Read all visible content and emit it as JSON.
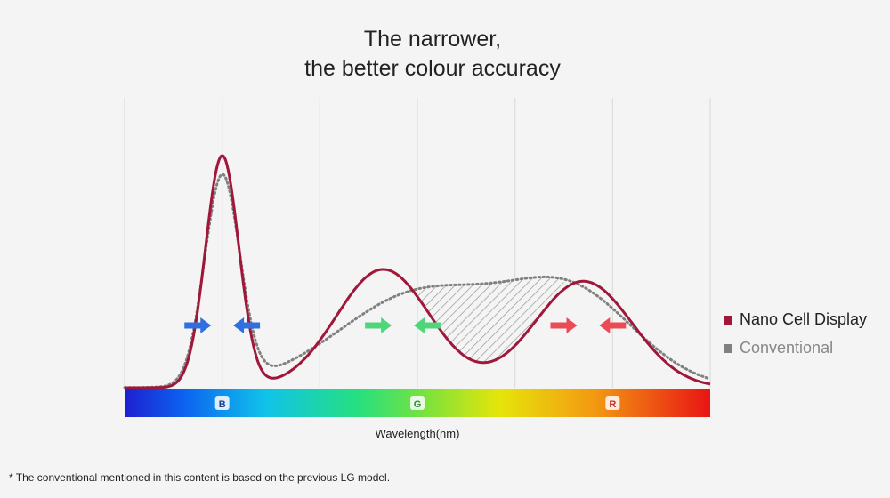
{
  "title_line1": "The narrower,",
  "title_line2": "the better colour accuracy",
  "footnote": "* The conventional mentioned in this content is based on the previous LG model.",
  "chart_data": {
    "type": "line",
    "title": "The narrower, the better colour accuracy",
    "xlabel": "Wavelength(nm)",
    "ylabel": "",
    "spectrum_labels": [
      "B",
      "G",
      "R"
    ],
    "series": [
      {
        "name": "Nano Cell Display",
        "color": "#a0173a",
        "style": "solid",
        "peaks": [
          {
            "center": 1.0,
            "height": 0.98,
            "width": 0.17
          },
          {
            "center": 2.65,
            "height": 0.5,
            "width": 0.48
          },
          {
            "center": 4.7,
            "height": 0.45,
            "width": 0.5
          }
        ]
      },
      {
        "name": "Conventional",
        "color": "#808080",
        "style": "dotted",
        "peaks": [
          {
            "center": 1.0,
            "height": 0.88,
            "width": 0.18
          },
          {
            "center": 3.05,
            "height": 0.4,
            "width": 0.85
          },
          {
            "center": 4.6,
            "height": 0.37,
            "width": 0.65
          }
        ]
      }
    ],
    "x_range": [
      0,
      6
    ],
    "y_range": [
      0,
      1
    ],
    "shaded_difference": {
      "from_x": 2.95,
      "to_x": 4.5,
      "description": "hatched area"
    },
    "arrows": [
      {
        "x": 0.75,
        "direction": "right",
        "color": "#2f6fe0"
      },
      {
        "x": 1.25,
        "direction": "left",
        "color": "#2f6fe0"
      },
      {
        "x": 2.6,
        "direction": "right",
        "color": "#4fd67a"
      },
      {
        "x": 3.1,
        "direction": "left",
        "color": "#4fd67a"
      },
      {
        "x": 4.5,
        "direction": "right",
        "color": "#ea4b55"
      },
      {
        "x": 5.0,
        "direction": "left",
        "color": "#ea4b55"
      }
    ],
    "grid": true,
    "legend_position": "right"
  }
}
